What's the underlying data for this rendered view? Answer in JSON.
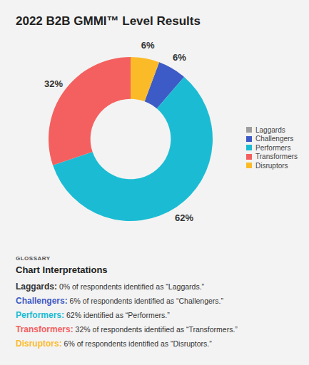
{
  "chart_data": {
    "type": "pie",
    "title": "2022 B2B GMMI™ Level Results",
    "categories": [
      "Laggards",
      "Challengers",
      "Performers",
      "Transformers",
      "Disruptors"
    ],
    "values": [
      0,
      6,
      62,
      32,
      6
    ],
    "value_labels": [
      null,
      "6%",
      "62%",
      "32%",
      "6%"
    ],
    "colors": [
      "#9e9e9e",
      "#3d5bc6",
      "#1bbcd3",
      "#f4605f",
      "#fbbb29"
    ],
    "data_labels": true,
    "legend": "right"
  },
  "glossary": {
    "heading": "GLOSSARY",
    "title": "Chart Interpretations",
    "items": [
      {
        "term": "Laggards:",
        "text": "0% of respondents identified as “Laggards.”"
      },
      {
        "term": "Challengers:",
        "text": "6% of respondents identified as “Challengers.”"
      },
      {
        "term": "Performers:",
        "text": "62% identified as “Performers.”"
      },
      {
        "term": "Transformers:",
        "text": "32% of respondents identified as “Transformers.”"
      },
      {
        "term": "Disruptors:",
        "text": "6% of respondents identified as “Disruptors.”"
      }
    ]
  }
}
